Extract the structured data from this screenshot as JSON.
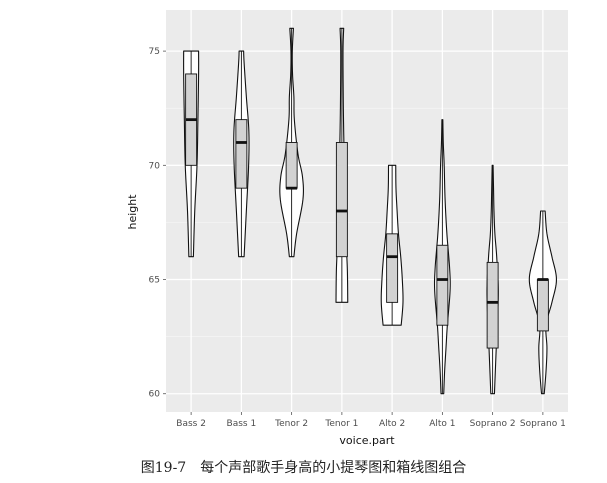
{
  "caption": "图19-7　每个声部歌手身高的小提琴图和箱线图组合",
  "chart_data": {
    "type": "violin",
    "title": "",
    "xlabel": "voice.part",
    "ylabel": "height",
    "ylim": [
      59.2,
      76.8
    ],
    "yticks": [
      60,
      65,
      70,
      75
    ],
    "grid": true,
    "legend": "none",
    "categories": [
      "Bass 2",
      "Bass 1",
      "Tenor 2",
      "Tenor 1",
      "Alto 2",
      "Alto 1",
      "Soprano 2",
      "Soprano 1"
    ],
    "box": [
      {
        "min": 66,
        "q1": 70,
        "median": 72,
        "q3": 74,
        "max": 75
      },
      {
        "min": 66,
        "q1": 69,
        "median": 71,
        "q3": 72,
        "max": 75
      },
      {
        "min": 66,
        "q1": 69,
        "median": 69,
        "q3": 71,
        "max": 76
      },
      {
        "min": 64,
        "q1": 66,
        "median": 68,
        "q3": 71,
        "max": 76
      },
      {
        "min": 63,
        "q1": 64,
        "median": 66,
        "q3": 67,
        "max": 70
      },
      {
        "min": 60,
        "q1": 63,
        "median": 65,
        "q3": 66.5,
        "max": 72
      },
      {
        "min": 60,
        "q1": 62,
        "median": 64,
        "q3": 65.75,
        "max": 70
      },
      {
        "min": 60,
        "q1": 62.75,
        "median": 65,
        "q3": 65,
        "max": 68
      }
    ],
    "violins": [
      [
        [
          66,
          0.1
        ],
        [
          68,
          0.16
        ],
        [
          70,
          0.26
        ],
        [
          72,
          0.3
        ],
        [
          74,
          0.33
        ],
        [
          75,
          0.33
        ]
      ],
      [
        [
          66,
          0.12
        ],
        [
          68,
          0.22
        ],
        [
          70,
          0.32
        ],
        [
          71.5,
          0.33
        ],
        [
          73,
          0.22
        ],
        [
          74.5,
          0.12
        ],
        [
          75,
          0.1
        ]
      ],
      [
        [
          66,
          0.1
        ],
        [
          67,
          0.22
        ],
        [
          68.5,
          0.5
        ],
        [
          69.5,
          0.48
        ],
        [
          70.5,
          0.28
        ],
        [
          72,
          0.12
        ],
        [
          73,
          0.1
        ],
        [
          74,
          0.04
        ],
        [
          75,
          0.03
        ],
        [
          76,
          0.08
        ]
      ],
      [
        [
          64,
          0.26
        ],
        [
          65.5,
          0.24
        ],
        [
          67,
          0.17
        ],
        [
          68.5,
          0.14
        ],
        [
          70,
          0.11
        ],
        [
          71.5,
          0.08
        ],
        [
          73,
          0.06
        ],
        [
          75,
          0.05
        ],
        [
          76,
          0.08
        ]
      ],
      [
        [
          63,
          0.4
        ],
        [
          64,
          0.48
        ],
        [
          65,
          0.45
        ],
        [
          66,
          0.38
        ],
        [
          67,
          0.28
        ],
        [
          68,
          0.22
        ],
        [
          69,
          0.17
        ],
        [
          70,
          0.16
        ]
      ],
      [
        [
          60,
          0.06
        ],
        [
          61,
          0.1
        ],
        [
          62,
          0.16
        ],
        [
          63,
          0.22
        ],
        [
          64.5,
          0.34
        ],
        [
          65.5,
          0.32
        ],
        [
          67,
          0.2
        ],
        [
          68.5,
          0.12
        ],
        [
          70,
          0.08
        ],
        [
          71,
          0.04
        ],
        [
          72,
          0.02
        ]
      ],
      [
        [
          60,
          0.08
        ],
        [
          61,
          0.12
        ],
        [
          62,
          0.16
        ],
        [
          63,
          0.2
        ],
        [
          64.5,
          0.25
        ],
        [
          66,
          0.18
        ],
        [
          67,
          0.1
        ],
        [
          68,
          0.06
        ],
        [
          69,
          0.04
        ],
        [
          70,
          0.02
        ]
      ],
      [
        [
          60,
          0.06
        ],
        [
          61,
          0.14
        ],
        [
          62,
          0.18
        ],
        [
          63,
          0.14
        ],
        [
          64,
          0.4
        ],
        [
          65,
          0.6
        ],
        [
          66,
          0.4
        ],
        [
          67,
          0.18
        ],
        [
          68,
          0.1
        ]
      ]
    ]
  }
}
